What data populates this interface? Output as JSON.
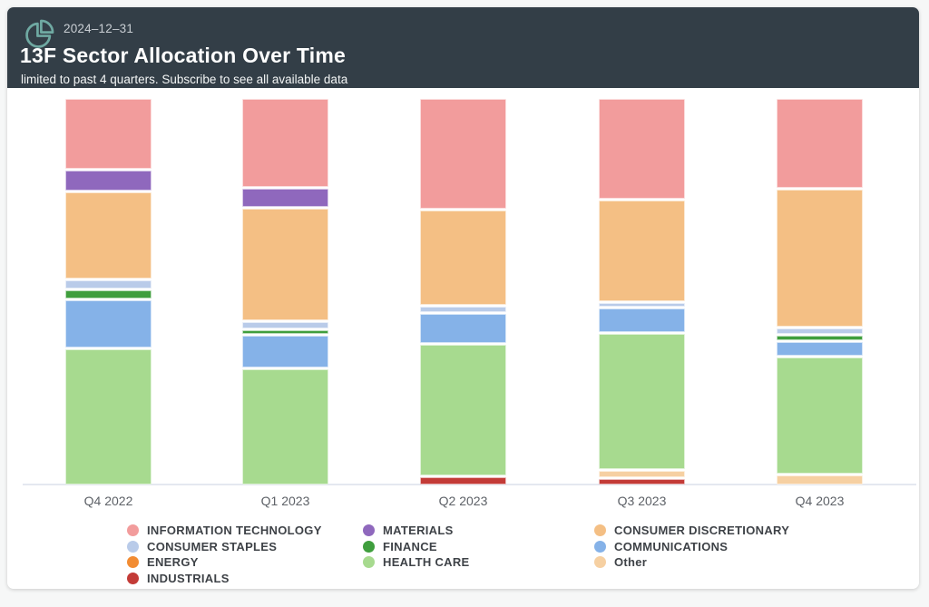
{
  "header": {
    "date": "2024–12–31",
    "title": "13F Sector Allocation Over Time",
    "subtitle": "limited to past 4 quarters. Subscribe to see all available data",
    "bg_color": "#333e47",
    "icon_color": "#6fa9a2",
    "date_color": "#c9ced3"
  },
  "chart_data": {
    "type": "bar",
    "variant": "stacked-percent",
    "title": "13F Sector Allocation Over Time",
    "categories": [
      "Q4 2022",
      "Q1 2023",
      "Q2 2023",
      "Q3 2023",
      "Q4 2023"
    ],
    "series": [
      {
        "name": "INFORMATION TECHNOLOGY",
        "color": "#f29c9c",
        "values": [
          18.8,
          23.9,
          29.6,
          27.1,
          24.0
        ]
      },
      {
        "name": "MATERIALS",
        "color": "#8f68bd",
        "values": [
          5.0,
          4.3,
          0,
          0,
          0
        ]
      },
      {
        "name": "CONSUMER DISCRETIONARY",
        "color": "#f4bf84",
        "values": [
          23.3,
          30.4,
          25.3,
          27.4,
          37.5
        ]
      },
      {
        "name": "CONSUMER STAPLES",
        "color": "#b9cbe9",
        "values": [
          1.7,
          1.2,
          1.0,
          0.5,
          0.8
        ]
      },
      {
        "name": "FINANCE",
        "color": "#3f9e3d",
        "values": [
          1.9,
          0.6,
          0,
          0,
          0.8
        ]
      },
      {
        "name": "COMMUNICATIONS",
        "color": "#85b2e8",
        "values": [
          12.4,
          8.2,
          7.5,
          6.0,
          3.4
        ]
      },
      {
        "name": "HEALTH CARE",
        "color": "#a7da8f",
        "values": [
          36.9,
          31.4,
          35.2,
          36.8,
          31.5
        ]
      },
      {
        "name": "ENERGY",
        "color": "#f28c33",
        "values": [
          0,
          0,
          0,
          0,
          0
        ]
      },
      {
        "name": "Other",
        "color": "#f6d0a2",
        "values": [
          0,
          0,
          0,
          1.2,
          2.0
        ]
      },
      {
        "name": "INDUSTRIALS",
        "color": "#c33b37",
        "values": [
          0,
          0,
          1.4,
          1.0,
          0
        ]
      }
    ],
    "ylim": [
      0,
      100
    ],
    "grid": false,
    "legend_position": "bottom",
    "x_label_color": "#5d6167",
    "axis_line_color": "#e4e8f0"
  },
  "legend": {
    "columns": [
      [
        "INFORMATION TECHNOLOGY",
        "CONSUMER STAPLES",
        "ENERGY",
        "INDUSTRIALS"
      ],
      [
        "MATERIALS",
        "FINANCE",
        "HEALTH CARE"
      ],
      [
        "CONSUMER DISCRETIONARY",
        "COMMUNICATIONS",
        "Other"
      ]
    ]
  }
}
